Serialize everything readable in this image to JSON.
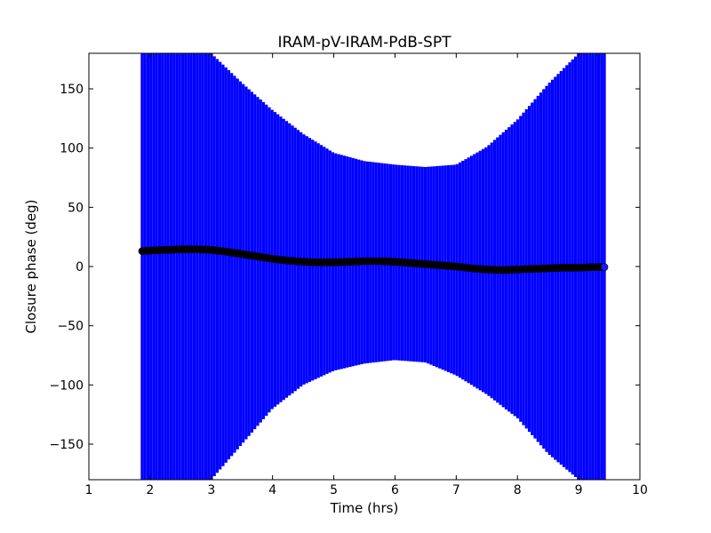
{
  "chart_data": {
    "type": "scatter",
    "title": "IRAM-pV-IRAM-PdB-SPT",
    "xlabel": "Time (hrs)",
    "ylabel": "Closure phase (deg)",
    "xlim": [
      1,
      10
    ],
    "ylim": [
      -180,
      180
    ],
    "xticks": [
      1,
      2,
      3,
      4,
      5,
      6,
      7,
      8,
      9,
      10
    ],
    "yticks": [
      -150,
      -100,
      -50,
      0,
      50,
      100,
      150
    ],
    "grid": false,
    "colors": {
      "errorbars": "#0000ff",
      "points": "#000000",
      "last_point": "#1a1aff"
    },
    "error_band": {
      "x": [
        1.87,
        2.5,
        3.0,
        3.5,
        4.0,
        4.5,
        5.0,
        5.5,
        6.0,
        6.5,
        7.0,
        7.5,
        8.0,
        8.5,
        9.0,
        9.42
      ],
      "upper": [
        180,
        180,
        180,
        155,
        132,
        112,
        96,
        89,
        86,
        84,
        86,
        101,
        124,
        154,
        180,
        180
      ],
      "lower": [
        -180,
        -180,
        -180,
        -150,
        -120,
        -100,
        -88,
        -82,
        -79,
        -81,
        -92,
        -108,
        -128,
        -158,
        -180,
        -180
      ]
    },
    "series": [
      {
        "x": [
          1.87,
          2.0,
          2.25,
          2.5,
          2.75,
          3.0,
          3.25,
          3.5,
          3.75,
          4.0,
          4.25,
          4.5,
          4.75,
          5.0,
          5.25,
          5.5,
          5.75,
          6.0,
          6.25,
          6.5,
          6.75,
          7.0,
          7.25,
          7.5,
          7.75,
          8.0,
          8.25,
          8.5,
          8.75,
          9.0,
          9.25,
          9.42
        ],
        "y": [
          13,
          13.5,
          14,
          14.5,
          14.5,
          14,
          12.5,
          10.5,
          8.5,
          6.5,
          5,
          4,
          3.5,
          3.5,
          4,
          4.5,
          4.5,
          4,
          3,
          2,
          1,
          0,
          -1.5,
          -2.5,
          -3,
          -2.5,
          -2,
          -1.5,
          -1,
          -1,
          -0.5,
          -0.5
        ]
      }
    ]
  }
}
